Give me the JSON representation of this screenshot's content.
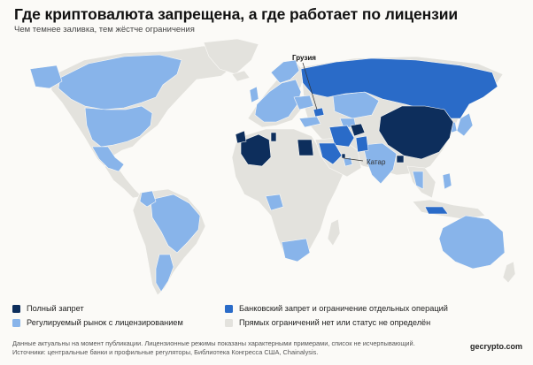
{
  "title": "Где криптовалюта запрещена, а где работает по лицензии",
  "subtitle": "Чем темнее заливка, тем жёстче ограничения",
  "colors": {
    "ban": "#0d2e5c",
    "bank": "#2a6bc8",
    "licensed": "#88b4ea",
    "none": "#e3e2dd",
    "background": "#fbfaf7"
  },
  "map": {
    "labels": {
      "georgia": "Грузия",
      "qatar": "Катар"
    }
  },
  "legend": {
    "items": [
      {
        "key": "ban",
        "label": "Полный запрет"
      },
      {
        "key": "bank",
        "label": "Банковский запрет и ограничение отдельных операций"
      },
      {
        "key": "licensed",
        "label": "Регулируемый рынок с лицензированием"
      },
      {
        "key": "none",
        "label": "Прямых ограничений нет или статус не определён"
      }
    ]
  },
  "footer": {
    "note": "Данные актуальны на момент публикации. Лицензионные режимы показаны характерными примерами, список не исчерпывающий.",
    "sources": "Источники: центральные банки и профильные регуляторы, Библиотека Конгресса США, Chainalysis.",
    "brand": "gecrypto.com"
  }
}
